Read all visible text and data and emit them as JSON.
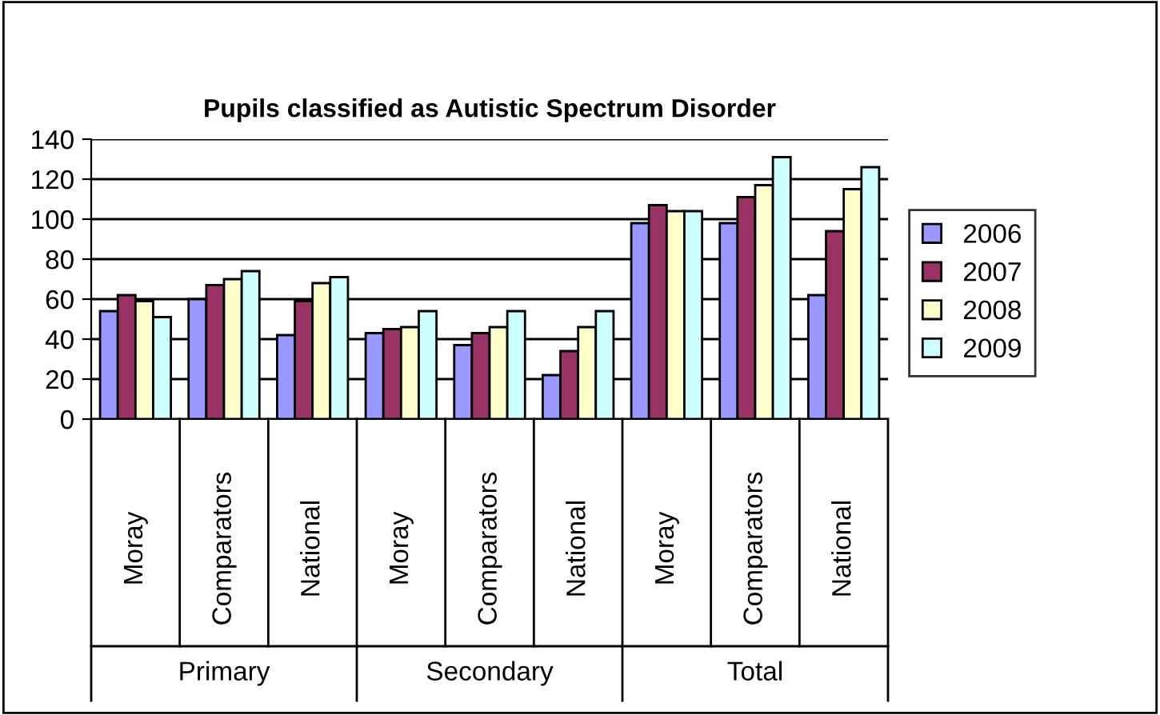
{
  "chart_data": {
    "type": "bar",
    "title": "Pupils classified as Autistic Spectrum Disorder",
    "categories": [
      "Moray",
      "Comparators",
      "National",
      "Moray",
      "Comparators",
      "National",
      "Moray",
      "Comparators",
      "National"
    ],
    "annotations": [
      "Primary",
      "Secondary",
      "Total"
    ],
    "series": [
      {
        "name": "2006",
        "color": "#9999ff",
        "values": [
          54,
          60,
          42,
          43,
          37,
          22,
          98,
          98,
          62
        ]
      },
      {
        "name": "2007",
        "color": "#993366",
        "values": [
          62,
          67,
          59,
          45,
          43,
          34,
          107,
          111,
          94
        ]
      },
      {
        "name": "2008",
        "color": "#ffffcc",
        "values": [
          59,
          70,
          68,
          46,
          46,
          46,
          104,
          117,
          115
        ]
      },
      {
        "name": "2009",
        "color": "#ccffff",
        "values": [
          51,
          74,
          71,
          54,
          54,
          54,
          104,
          131,
          126
        ]
      }
    ],
    "ylim": [
      0,
      140
    ],
    "yticks": [
      0,
      20,
      40,
      60,
      80,
      100,
      120,
      140
    ],
    "grid": "y",
    "legend": "right"
  }
}
